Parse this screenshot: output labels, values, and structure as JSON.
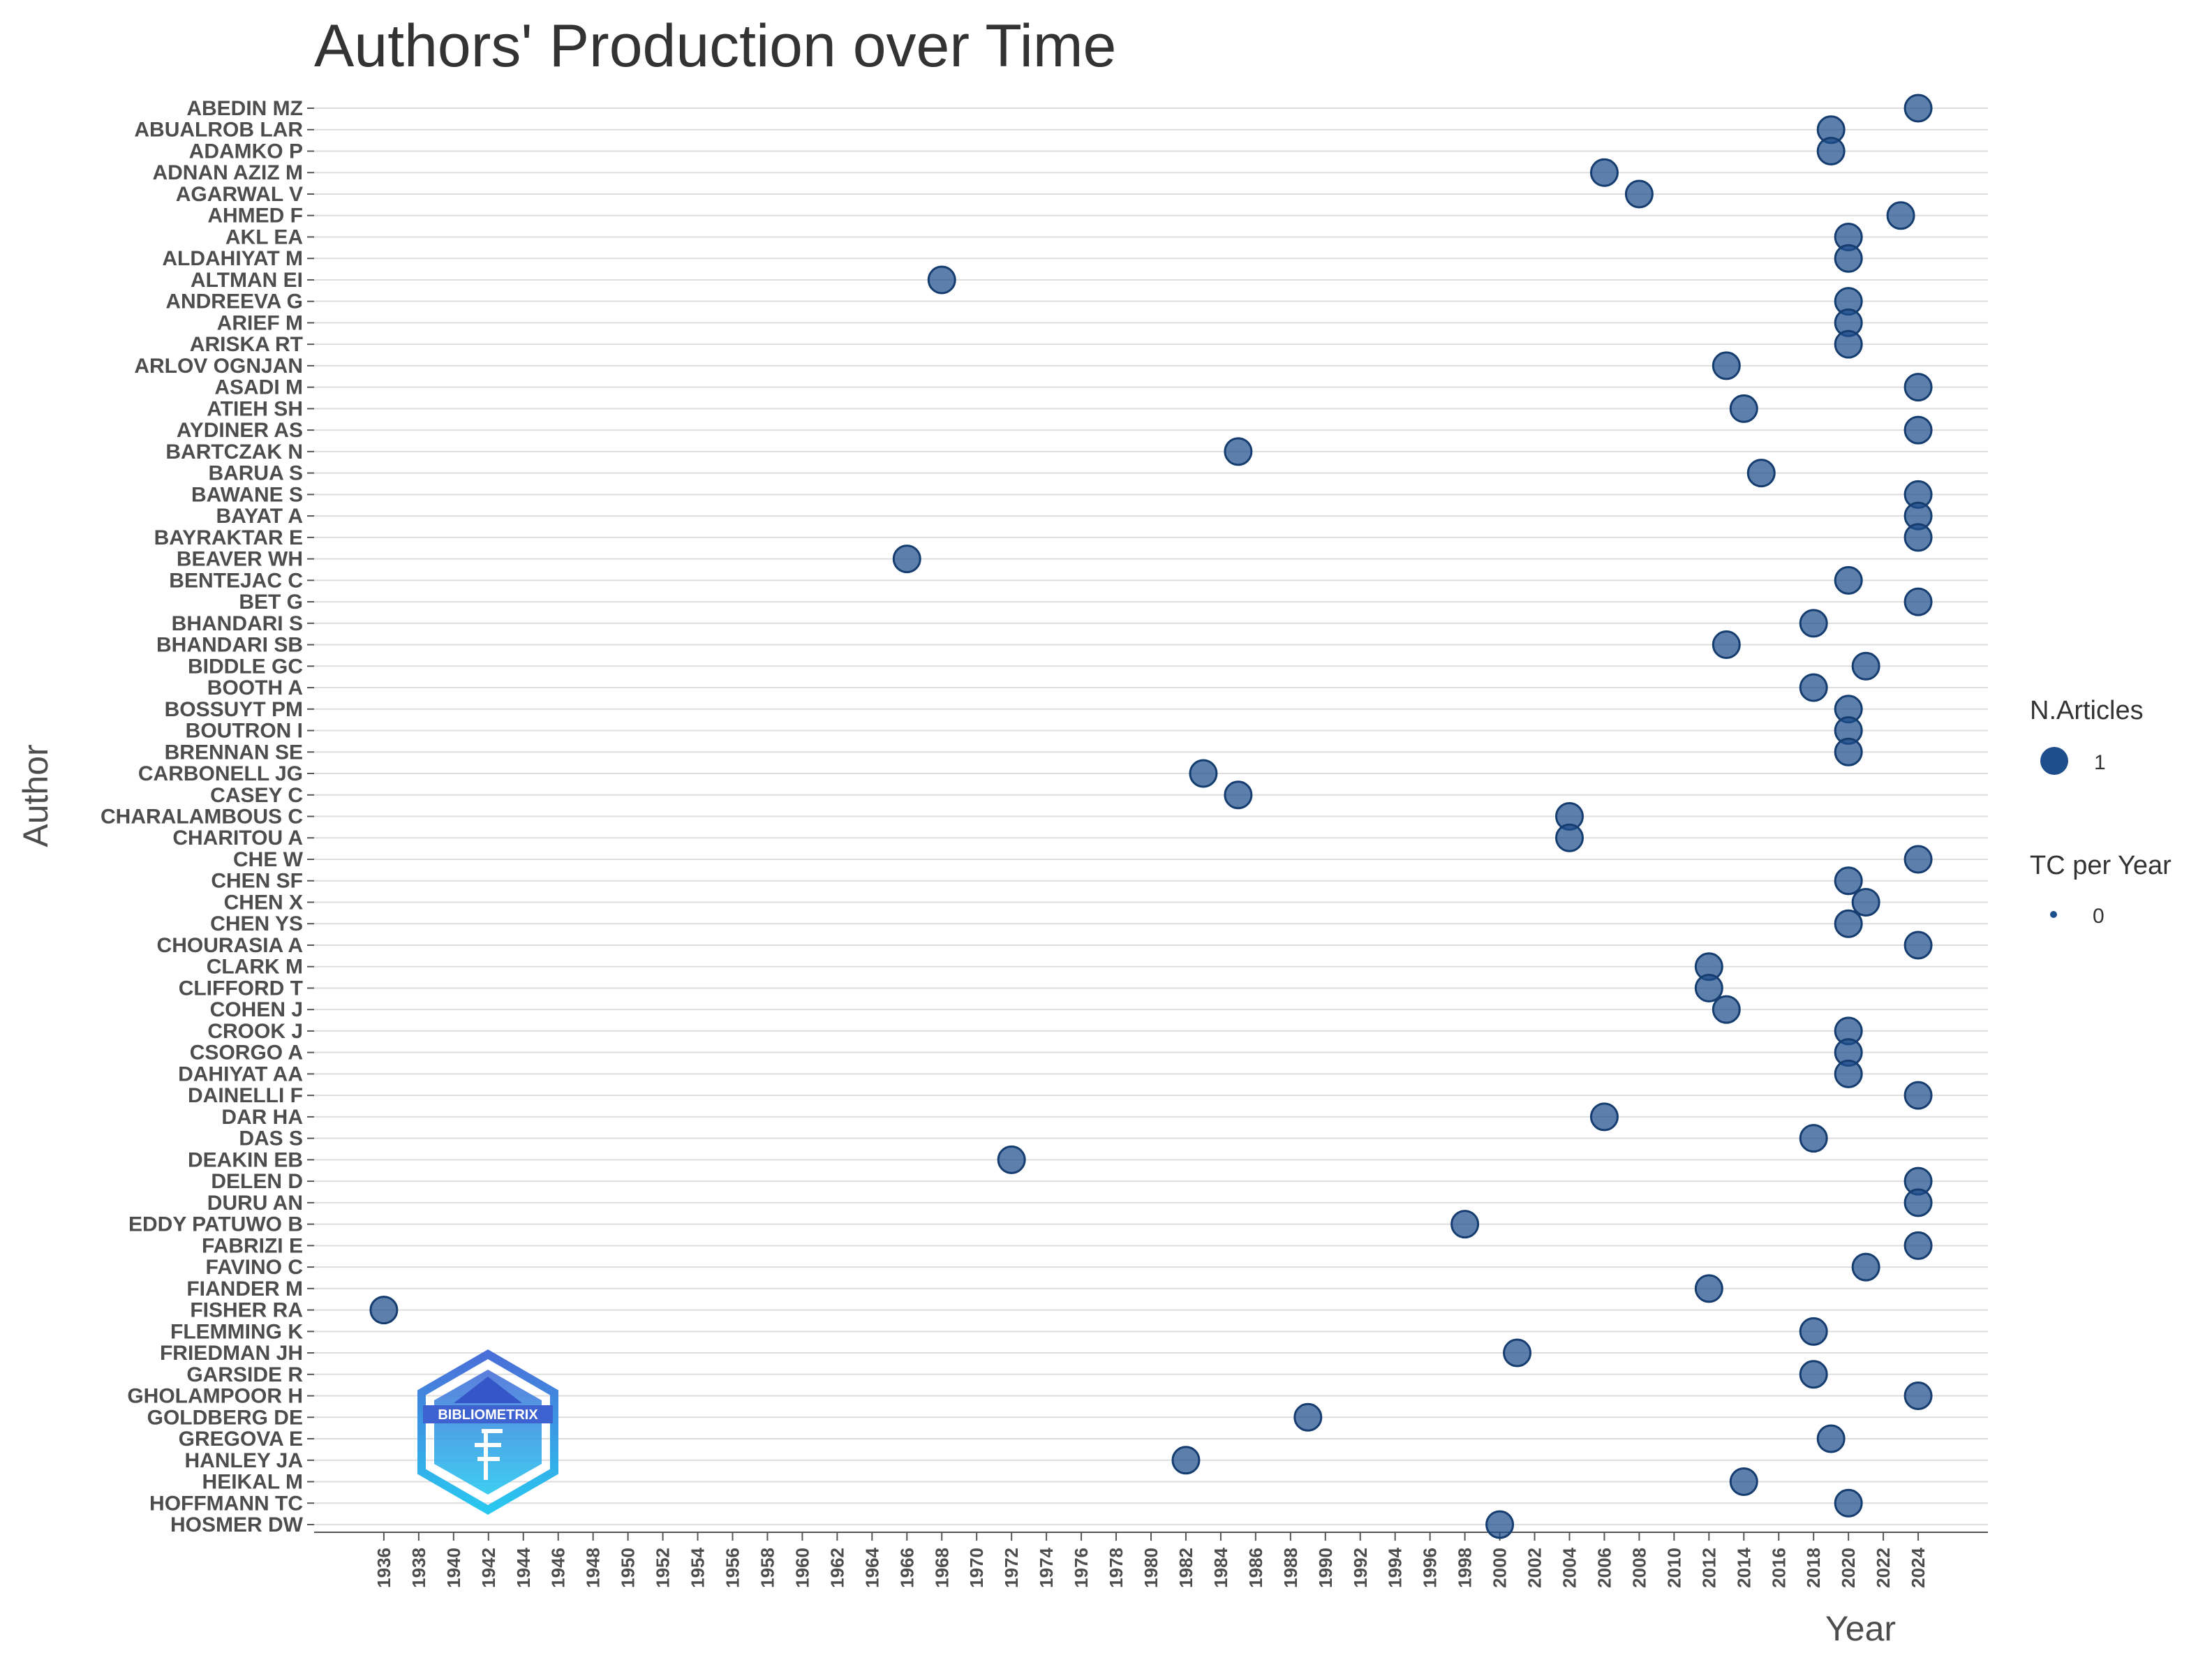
{
  "chart_data": {
    "type": "scatter",
    "title": "Authors' Production over Time",
    "xlabel": "Year",
    "ylabel": "Author",
    "xlim": [
      1932,
      2028
    ],
    "x_ticks": [
      1936,
      1938,
      1940,
      1942,
      1944,
      1946,
      1948,
      1950,
      1952,
      1954,
      1956,
      1958,
      1960,
      1962,
      1964,
      1966,
      1968,
      1970,
      1972,
      1974,
      1976,
      1978,
      1980,
      1982,
      1984,
      1986,
      1988,
      1990,
      1992,
      1994,
      1996,
      1998,
      2000,
      2002,
      2004,
      2006,
      2008,
      2010,
      2012,
      2014,
      2016,
      2018,
      2020,
      2022,
      2024
    ],
    "authors": [
      "ABEDIN MZ",
      "ABUALROB LAR",
      "ADAMKO P",
      "ADNAN AZIZ M",
      "AGARWAL V",
      "AHMED F",
      "AKL EA",
      "ALDAHIYAT M",
      "ALTMAN EI",
      "ANDREEVA G",
      "ARIEF M",
      "ARISKA RT",
      "ARLOV OGNJAN",
      "ASADI M",
      "ATIEH SH",
      "AYDINER AS",
      "BARTCZAK N",
      "BARUA S",
      "BAWANE S",
      "BAYAT A",
      "BAYRAKTAR E",
      "BEAVER WH",
      "BENTEJAC C",
      "BET G",
      "BHANDARI S",
      "BHANDARI SB",
      "BIDDLE GC",
      "BOOTH A",
      "BOSSUYT PM",
      "BOUTRON I",
      "BRENNAN SE",
      "CARBONELL JG",
      "CASEY C",
      "CHARALAMBOUS C",
      "CHARITOU A",
      "CHE W",
      "CHEN SF",
      "CHEN X",
      "CHEN YS",
      "CHOURASIA A",
      "CLARK M",
      "CLIFFORD T",
      "COHEN J",
      "CROOK J",
      "CSORGO A",
      "DAHIYAT AA",
      "DAINELLI F",
      "DAR HA",
      "DAS S",
      "DEAKIN EB",
      "DELEN D",
      "DURU AN",
      "EDDY PATUWO B",
      "FABRIZI E",
      "FAVINO C",
      "FIANDER M",
      "FISHER RA",
      "FLEMMING K",
      "FRIEDMAN JH",
      "GARSIDE R",
      "GHOLAMPOOR H",
      "GOLDBERG DE",
      "GREGOVA E",
      "HANLEY JA",
      "HEIKAL M",
      "HOFFMANN TC",
      "HOSMER DW"
    ],
    "points": [
      {
        "author": "ABEDIN MZ",
        "year": 2024
      },
      {
        "author": "ABUALROB LAR",
        "year": 2019
      },
      {
        "author": "ADAMKO P",
        "year": 2019
      },
      {
        "author": "ADNAN AZIZ M",
        "year": 2006
      },
      {
        "author": "AGARWAL V",
        "year": 2008
      },
      {
        "author": "AHMED F",
        "year": 2023
      },
      {
        "author": "AKL EA",
        "year": 2020
      },
      {
        "author": "ALDAHIYAT M",
        "year": 2020
      },
      {
        "author": "ALTMAN EI",
        "year": 1968
      },
      {
        "author": "ANDREEVA G",
        "year": 2020
      },
      {
        "author": "ARIEF M",
        "year": 2020
      },
      {
        "author": "ARISKA RT",
        "year": 2020
      },
      {
        "author": "ARLOV OGNJAN",
        "year": 2013
      },
      {
        "author": "ASADI M",
        "year": 2024
      },
      {
        "author": "ATIEH SH",
        "year": 2014
      },
      {
        "author": "AYDINER AS",
        "year": 2024
      },
      {
        "author": "BARTCZAK N",
        "year": 1985
      },
      {
        "author": "BARUA S",
        "year": 2015
      },
      {
        "author": "BAWANE S",
        "year": 2024
      },
      {
        "author": "BAYAT A",
        "year": 2024
      },
      {
        "author": "BAYRAKTAR E",
        "year": 2024
      },
      {
        "author": "BEAVER WH",
        "year": 1966
      },
      {
        "author": "BENTEJAC C",
        "year": 2020
      },
      {
        "author": "BET G",
        "year": 2024
      },
      {
        "author": "BHANDARI S",
        "year": 2018
      },
      {
        "author": "BHANDARI SB",
        "year": 2013
      },
      {
        "author": "BIDDLE GC",
        "year": 2021
      },
      {
        "author": "BOOTH A",
        "year": 2018
      },
      {
        "author": "BOSSUYT PM",
        "year": 2020
      },
      {
        "author": "BOUTRON I",
        "year": 2020
      },
      {
        "author": "BRENNAN SE",
        "year": 2020
      },
      {
        "author": "CARBONELL JG",
        "year": 1983
      },
      {
        "author": "CASEY C",
        "year": 1985
      },
      {
        "author": "CHARALAMBOUS C",
        "year": 2004
      },
      {
        "author": "CHARITOU A",
        "year": 2004
      },
      {
        "author": "CHE W",
        "year": 2024
      },
      {
        "author": "CHEN SF",
        "year": 2020
      },
      {
        "author": "CHEN X",
        "year": 2021
      },
      {
        "author": "CHEN YS",
        "year": 2020
      },
      {
        "author": "CHOURASIA A",
        "year": 2024
      },
      {
        "author": "CLARK M",
        "year": 2012
      },
      {
        "author": "CLIFFORD T",
        "year": 2012
      },
      {
        "author": "COHEN J",
        "year": 2013
      },
      {
        "author": "CROOK J",
        "year": 2020
      },
      {
        "author": "CSORGO A",
        "year": 2020
      },
      {
        "author": "DAHIYAT AA",
        "year": 2020
      },
      {
        "author": "DAINELLI F",
        "year": 2024
      },
      {
        "author": "DAR HA",
        "year": 2006
      },
      {
        "author": "DAS S",
        "year": 2018
      },
      {
        "author": "DEAKIN EB",
        "year": 1972
      },
      {
        "author": "DELEN D",
        "year": 2024
      },
      {
        "author": "DURU AN",
        "year": 2024
      },
      {
        "author": "EDDY PATUWO B",
        "year": 1998
      },
      {
        "author": "FABRIZI E",
        "year": 2024
      },
      {
        "author": "FAVINO C",
        "year": 2021
      },
      {
        "author": "FIANDER M",
        "year": 2012
      },
      {
        "author": "FISHER RA",
        "year": 1936
      },
      {
        "author": "FLEMMING K",
        "year": 2018
      },
      {
        "author": "FRIEDMAN JH",
        "year": 2001
      },
      {
        "author": "GARSIDE R",
        "year": 2018
      },
      {
        "author": "GHOLAMPOOR H",
        "year": 2024
      },
      {
        "author": "GOLDBERG DE",
        "year": 1989
      },
      {
        "author": "GREGOVA E",
        "year": 2019
      },
      {
        "author": "HANLEY JA",
        "year": 1982
      },
      {
        "author": "HEIKAL M",
        "year": 2014
      },
      {
        "author": "HOFFMANN TC",
        "year": 2020
      },
      {
        "author": "HOSMER DW",
        "year": 2000
      }
    ],
    "legend": [
      {
        "title": "N.Articles",
        "label": "1"
      },
      {
        "title": "TC per Year",
        "label": "0"
      }
    ],
    "legend_position": "right",
    "grid": true,
    "point_color": "#1f4e8c"
  },
  "logo": {
    "text": "BIBLIOMETRIX"
  }
}
